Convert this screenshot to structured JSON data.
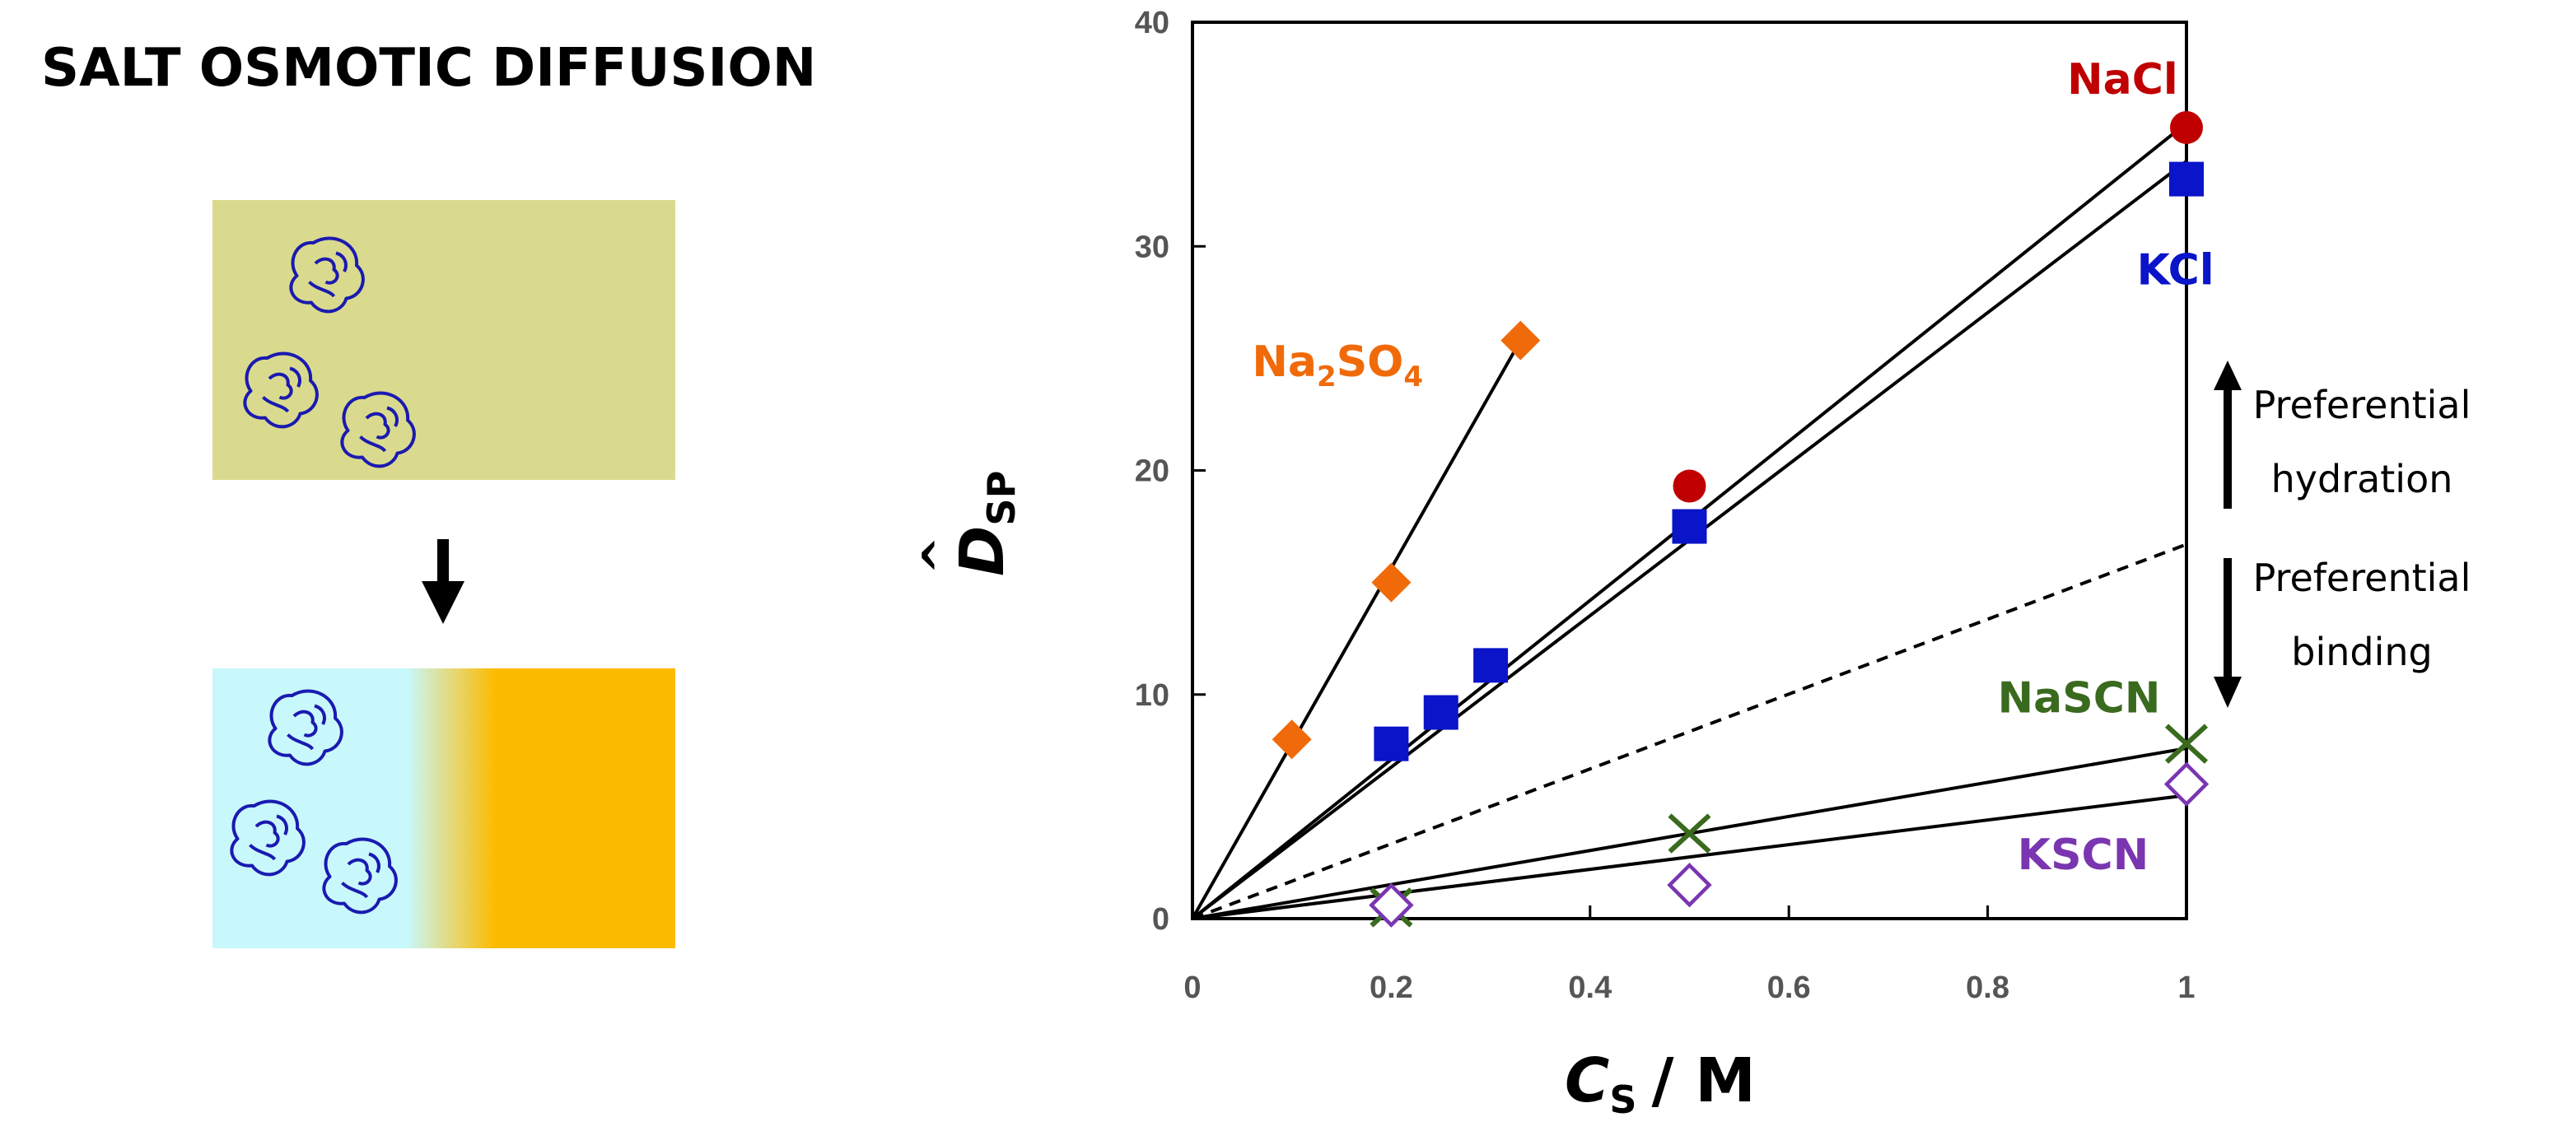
{
  "figure": {
    "title": "SALT OSMOTIC DIFFUSION",
    "schematic": {
      "top_box_color": "#dada8e",
      "bottom_left_color": "#c8f8fb",
      "bottom_right_color": "#fdbb00",
      "protein_color": "#1a1ab0",
      "arrow_icon": "arrow-down-icon"
    },
    "annotations": {
      "up": "Preferential hydration",
      "up_lines": [
        "Preferential",
        "hydration"
      ],
      "down": "Preferential binding",
      "down_lines": [
        "Preferential",
        "binding"
      ]
    }
  },
  "chart_data": {
    "type": "scatter",
    "title": "",
    "xlabel": "C_S / M",
    "xlabel_main": "C",
    "xlabel_sub": "S",
    "xlabel_unit": "/ M",
    "ylabel": "D̂_SP",
    "ylabel_main": "D",
    "ylabel_sub": "SP",
    "xlim": [
      0,
      1
    ],
    "ylim": [
      0,
      40
    ],
    "xticks": [
      "0",
      "0.2",
      "0.4",
      "0.6",
      "0.8",
      "1"
    ],
    "xtick_values": [
      0,
      0.2,
      0.4,
      0.6,
      0.8,
      1
    ],
    "yticks": [
      "0",
      "10",
      "20",
      "30",
      "40"
    ],
    "ytick_values": [
      0,
      10,
      20,
      30,
      40
    ],
    "series": [
      {
        "name": "NaCl",
        "color": "#c00000",
        "marker": "circle",
        "points": [
          [
            0.5,
            19.3
          ],
          [
            1.0,
            35.3
          ]
        ],
        "fit": [
          [
            0,
            0
          ],
          [
            1.0,
            35.5
          ]
        ],
        "label_at": [
          0.88,
          36.8
        ]
      },
      {
        "name": "KCl",
        "color": "#0a14c8",
        "marker": "square",
        "points": [
          [
            0.2,
            7.8
          ],
          [
            0.25,
            9.2
          ],
          [
            0.3,
            11.3
          ],
          [
            0.5,
            17.5
          ],
          [
            1.0,
            33.0
          ]
        ],
        "fit": [
          [
            0,
            0
          ],
          [
            1.0,
            33.8
          ]
        ],
        "label_at": [
          0.95,
          28.3
        ]
      },
      {
        "name": "Na2SO4",
        "label_main": "Na",
        "label_sub1": "2",
        "label_mid": "SO",
        "label_sub2": "4",
        "color": "#f06a0a",
        "marker": "diamond",
        "points": [
          [
            0.1,
            8.0
          ],
          [
            0.2,
            15.0
          ],
          [
            0.33,
            25.8
          ]
        ],
        "fit": [
          [
            0,
            0
          ],
          [
            0.33,
            25.8
          ]
        ],
        "label_at": [
          0.06,
          24.2
        ]
      },
      {
        "name": "NaSCN",
        "color": "#3a6a1e",
        "marker": "x",
        "points": [
          [
            0.2,
            0.5
          ],
          [
            0.5,
            3.8
          ],
          [
            1.0,
            7.8
          ]
        ],
        "fit": [
          [
            0,
            0
          ],
          [
            1.0,
            7.6
          ]
        ],
        "label_at": [
          0.81,
          9.2
        ]
      },
      {
        "name": "KSCN",
        "color": "#7a35b0",
        "marker": "open-diamond",
        "points": [
          [
            0.2,
            0.6
          ],
          [
            0.5,
            1.5
          ],
          [
            1.0,
            6.0
          ]
        ],
        "fit": [
          [
            0,
            0
          ],
          [
            1.0,
            5.5
          ]
        ],
        "label_at": [
          0.83,
          2.2
        ]
      }
    ],
    "reference_line": {
      "style": "dashed",
      "from": [
        0,
        0
      ],
      "to": [
        1.0,
        16.7
      ]
    }
  }
}
